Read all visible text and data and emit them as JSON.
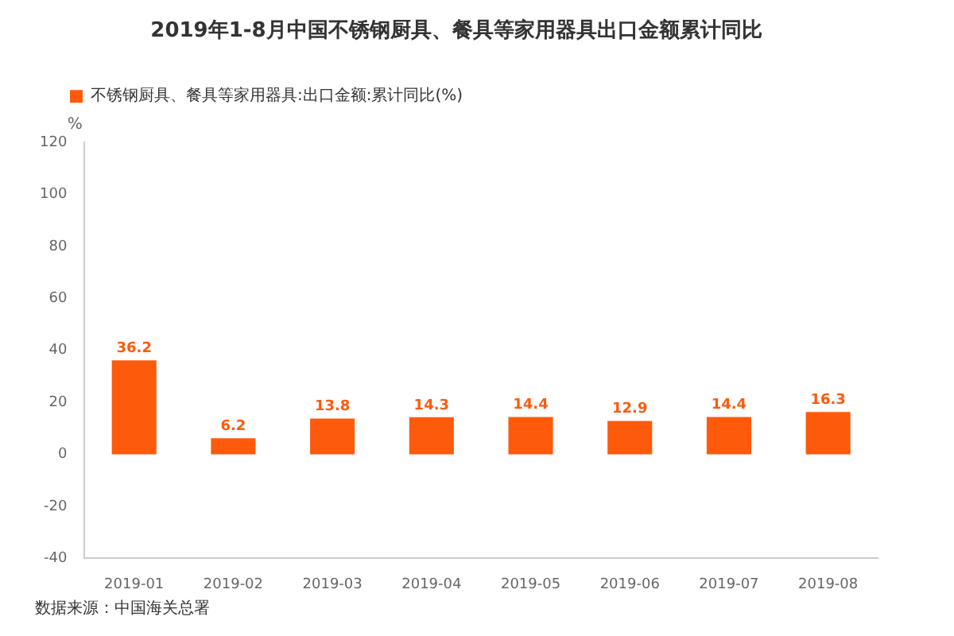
{
  "chart_data": {
    "type": "bar",
    "title": "2019年1-8月中国不锈钢厨具、餐具等家用器具出口金额累计同比",
    "ylabel": "%",
    "categories": [
      "2019-01",
      "2019-02",
      "2019-03",
      "2019-04",
      "2019-05",
      "2019-06",
      "2019-07",
      "2019-08"
    ],
    "series": [
      {
        "name": "不锈钢厨具、餐具等家用器具:出口金额:累计同比(%)",
        "color": "#fe5a0c",
        "values": [
          36.2,
          6.2,
          13.8,
          14.3,
          14.4,
          12.9,
          14.4,
          16.3
        ]
      }
    ],
    "ylim": [
      -40,
      120
    ],
    "yticks": [
      -40,
      -20,
      0,
      20,
      40,
      60,
      80,
      100,
      120
    ],
    "grid": false,
    "legend": "top left",
    "data_labels": true,
    "annotations": [
      "数据来源：中国海关总署"
    ]
  }
}
